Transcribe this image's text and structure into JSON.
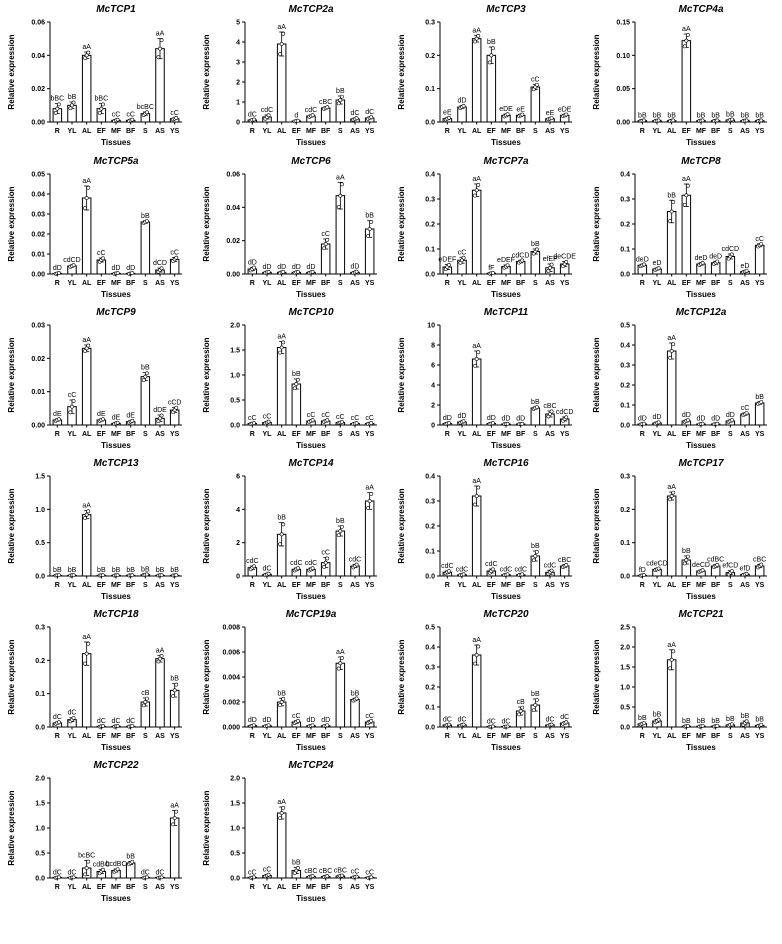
{
  "chart_data": [
    {
      "type": "bar",
      "title": "McTCP1",
      "xlabel": "Tissues",
      "ylabel": "Relative expression",
      "categories": [
        "R",
        "YL",
        "AL",
        "EF",
        "MF",
        "BF",
        "S",
        "AS",
        "YS"
      ],
      "ylim": [
        0,
        0.06
      ],
      "yticks": [
        "0.00",
        "0.02",
        "0.04",
        "0.06"
      ],
      "values": [
        0.008,
        0.01,
        0.04,
        0.008,
        0.001,
        0.001,
        0.005,
        0.044,
        0.002
      ],
      "errors": [
        0.003,
        0.002,
        0.002,
        0.003,
        0.0005,
        0.0005,
        0.001,
        0.006,
        0.0005
      ],
      "labels": [
        "bBC",
        "bB",
        "aA",
        "bBC",
        "cC",
        "cC",
        "bcBC",
        "aA",
        "cC"
      ]
    },
    {
      "type": "bar",
      "title": "McTCP2a",
      "xlabel": "Tissues",
      "ylabel": "Relative expression",
      "categories": [
        "R",
        "YL",
        "AL",
        "EF",
        "MF",
        "BF",
        "S",
        "AS",
        "YS"
      ],
      "ylim": [
        0,
        5
      ],
      "yticks": [
        "0",
        "1",
        "2",
        "3",
        "4",
        "5"
      ],
      "values": [
        0.1,
        0.25,
        3.9,
        0.05,
        0.3,
        0.7,
        1.1,
        0.15,
        0.2
      ],
      "errors": [
        0.03,
        0.1,
        0.6,
        0.02,
        0.05,
        0.05,
        0.2,
        0.05,
        0.05
      ],
      "labels": [
        "dC",
        "cdC",
        "aA",
        "d",
        "cdC",
        "cBC",
        "bB",
        "dC",
        "dC"
      ]
    },
    {
      "type": "bar",
      "title": "McTCP3",
      "xlabel": "Tissues",
      "ylabel": "Relative expression",
      "categories": [
        "R",
        "YL",
        "AL",
        "EF",
        "MF",
        "BF",
        "S",
        "AS",
        "YS"
      ],
      "ylim": [
        0,
        0.3
      ],
      "yticks": [
        "0.0",
        "0.1",
        "0.2",
        "0.3"
      ],
      "values": [
        0.01,
        0.045,
        0.25,
        0.2,
        0.02,
        0.02,
        0.105,
        0.01,
        0.02
      ],
      "errors": [
        0.003,
        0.004,
        0.01,
        0.025,
        0.004,
        0.003,
        0.008,
        0.002,
        0.003
      ],
      "labels": [
        "eE",
        "dD",
        "aA",
        "bB",
        "eDE",
        "eE",
        "cC",
        "eE",
        "eDE"
      ]
    },
    {
      "type": "bar",
      "title": "McTCP4a",
      "xlabel": "Tissues",
      "ylabel": "Relative expression",
      "categories": [
        "R",
        "YL",
        "AL",
        "EF",
        "MF",
        "BF",
        "S",
        "AS",
        "YS"
      ],
      "ylim": [
        0,
        0.15
      ],
      "yticks": [
        "0.00",
        "0.05",
        "0.10",
        "0.15"
      ],
      "values": [
        0.002,
        0.002,
        0.002,
        0.122,
        0.002,
        0.002,
        0.003,
        0.002,
        0.002
      ],
      "errors": [
        0.0005,
        0.0005,
        0.0005,
        0.01,
        0.0005,
        0.0005,
        0.001,
        0.0005,
        0.0005
      ],
      "labels": [
        "bB",
        "bB",
        "bB",
        "aA",
        "bB",
        "bB",
        "bB",
        "bB",
        "bB"
      ]
    },
    {
      "type": "bar",
      "title": "McTCP5a",
      "xlabel": "Tissues",
      "ylabel": "Relative expression",
      "categories": [
        "R",
        "YL",
        "AL",
        "EF",
        "MF",
        "BF",
        "S",
        "AS",
        "YS"
      ],
      "ylim": [
        0,
        0.05
      ],
      "yticks": [
        "0.00",
        "0.01",
        "0.02",
        "0.03",
        "0.04",
        "0.05"
      ],
      "values": [
        0.0003,
        0.004,
        0.038,
        0.007,
        0.0003,
        0.0003,
        0.026,
        0.002,
        0.0073
      ],
      "errors": [
        0.0002,
        0.0005,
        0.006,
        0.001,
        0.0002,
        0.0002,
        0.0006,
        0.001,
        0.001
      ],
      "labels": [
        "dD",
        "cdCD",
        "aA",
        "cC",
        "dD",
        "dD",
        "bB",
        "dCD",
        "cC"
      ]
    },
    {
      "type": "bar",
      "title": "McTCP6",
      "xlabel": "Tissues",
      "ylabel": "Relative expression",
      "categories": [
        "R",
        "YL",
        "AL",
        "EF",
        "MF",
        "BF",
        "S",
        "AS",
        "YS"
      ],
      "ylim": [
        0,
        0.06
      ],
      "yticks": [
        "0.00",
        "0.02",
        "0.04",
        "0.06"
      ],
      "values": [
        0.003,
        0.001,
        0.001,
        0.001,
        0.001,
        0.018,
        0.047,
        0.001,
        0.027
      ],
      "errors": [
        0.001,
        0.0003,
        0.0003,
        0.0003,
        0.0003,
        0.003,
        0.008,
        0.0005,
        0.005
      ],
      "labels": [
        "dD",
        "dD",
        "dD",
        "dD",
        "dD",
        "cC",
        "aA",
        "dD",
        "bB"
      ]
    },
    {
      "type": "bar",
      "title": "McTCP7a",
      "xlabel": "Tissues",
      "ylabel": "Relative expression",
      "categories": [
        "R",
        "YL",
        "AL",
        "EF",
        "MF",
        "BF",
        "S",
        "AS",
        "YS"
      ],
      "ylim": [
        0,
        0.4
      ],
      "yticks": [
        "0.0",
        "0.1",
        "0.2",
        "0.3",
        "0.4"
      ],
      "values": [
        0.028,
        0.055,
        0.335,
        0.003,
        0.03,
        0.05,
        0.09,
        0.025,
        0.04
      ],
      "errors": [
        0.01,
        0.012,
        0.025,
        0.002,
        0.006,
        0.005,
        0.01,
        0.015,
        0.01
      ],
      "labels": [
        "eDEF",
        "cC",
        "aA",
        "fF",
        "eDEF",
        "cdCD",
        "bB",
        "efEF",
        "deCDE"
      ]
    },
    {
      "type": "bar",
      "title": "McTCP8",
      "xlabel": "Tissues",
      "ylabel": "Relative expression",
      "categories": [
        "R",
        "YL",
        "AL",
        "EF",
        "MF",
        "BF",
        "S",
        "AS",
        "YS"
      ],
      "ylim": [
        0,
        0.4
      ],
      "yticks": [
        "0.0",
        "0.1",
        "0.2",
        "0.3",
        "0.4"
      ],
      "values": [
        0.035,
        0.02,
        0.25,
        0.315,
        0.04,
        0.045,
        0.07,
        0.01,
        0.115
      ],
      "errors": [
        0.004,
        0.004,
        0.045,
        0.045,
        0.005,
        0.006,
        0.01,
        0.003,
        0.006
      ],
      "labels": [
        "deD",
        "eD",
        "bB",
        "aA",
        "deD",
        "deD",
        "cdCD",
        "eD",
        "cC"
      ]
    },
    {
      "type": "bar",
      "title": "McTCP9",
      "xlabel": "Tissues",
      "ylabel": "Relative expression",
      "categories": [
        "R",
        "YL",
        "AL",
        "EF",
        "MF",
        "BF",
        "S",
        "AS",
        "YS"
      ],
      "ylim": [
        0,
        0.03
      ],
      "yticks": [
        "0.00",
        "0.01",
        "0.02",
        "0.03"
      ],
      "values": [
        0.0015,
        0.0055,
        0.023,
        0.0015,
        0.0005,
        0.001,
        0.0145,
        0.002,
        0.0045
      ],
      "errors": [
        0.0003,
        0.002,
        0.001,
        0.0003,
        0.0002,
        0.0003,
        0.0012,
        0.001,
        0.0008
      ],
      "labels": [
        "dE",
        "cC",
        "aA",
        "dE",
        "dE",
        "dE",
        "bB",
        "dDE",
        "cCD"
      ]
    },
    {
      "type": "bar",
      "title": "McTCP10",
      "xlabel": "Tissues",
      "ylabel": "Relative expression",
      "categories": [
        "R",
        "YL",
        "AL",
        "EF",
        "MF",
        "BF",
        "S",
        "AS",
        "YS"
      ],
      "ylim": [
        0,
        2.0
      ],
      "yticks": [
        "0.0",
        "0.5",
        "1.0",
        "1.5",
        "2.0"
      ],
      "values": [
        0.03,
        0.05,
        1.55,
        0.82,
        0.08,
        0.08,
        0.05,
        0.03,
        0.03
      ],
      "errors": [
        0.01,
        0.02,
        0.12,
        0.1,
        0.02,
        0.02,
        0.01,
        0.01,
        0.01
      ],
      "labels": [
        "cC",
        "cC",
        "aA",
        "bB",
        "cC",
        "cC",
        "cC",
        "cC",
        "cC"
      ]
    },
    {
      "type": "bar",
      "title": "McTCP11",
      "xlabel": "Tissues",
      "ylabel": "Relative expression",
      "categories": [
        "R",
        "YL",
        "AL",
        "EF",
        "MF",
        "BF",
        "S",
        "AS",
        "YS"
      ],
      "ylim": [
        0,
        10
      ],
      "yticks": [
        "0",
        "2",
        "4",
        "6",
        "8",
        "10"
      ],
      "values": [
        0.15,
        0.3,
        6.6,
        0.15,
        0.1,
        0.1,
        1.7,
        1.1,
        0.6
      ],
      "errors": [
        0.05,
        0.1,
        0.8,
        0.05,
        0.03,
        0.03,
        0.1,
        0.3,
        0.2
      ],
      "labels": [
        "dD",
        "dD",
        "aA",
        "dD",
        "dD",
        "dD",
        "bB",
        "cBC",
        "cdCD"
      ]
    },
    {
      "type": "bar",
      "title": "McTCP12a",
      "xlabel": "Tissues",
      "ylabel": "Relative expression",
      "categories": [
        "R",
        "YL",
        "AL",
        "EF",
        "MF",
        "BF",
        "S",
        "AS",
        "YS"
      ],
      "ylim": [
        0,
        0.5
      ],
      "yticks": [
        "0.0",
        "0.1",
        "0.2",
        "0.3",
        "0.4",
        "0.5"
      ],
      "values": [
        0.005,
        0.01,
        0.37,
        0.02,
        0.005,
        0.005,
        0.02,
        0.055,
        0.11
      ],
      "errors": [
        0.002,
        0.004,
        0.04,
        0.005,
        0.002,
        0.002,
        0.005,
        0.006,
        0.006
      ],
      "labels": [
        "dD",
        "dD",
        "aA",
        "dD",
        "dD",
        "dD",
        "dD",
        "cC",
        "bB"
      ]
    },
    {
      "type": "bar",
      "title": "McTCP13",
      "xlabel": "Tissues",
      "ylabel": "Relative expression",
      "categories": [
        "R",
        "YL",
        "AL",
        "EF",
        "MF",
        "BF",
        "S",
        "AS",
        "YS"
      ],
      "ylim": [
        0,
        1.5
      ],
      "yticks": [
        "0.0",
        "0.5",
        "1.0",
        "1.5"
      ],
      "values": [
        0.01,
        0.01,
        0.92,
        0.01,
        0.01,
        0.01,
        0.02,
        0.01,
        0.01
      ],
      "errors": [
        0.003,
        0.003,
        0.06,
        0.003,
        0.003,
        0.003,
        0.005,
        0.003,
        0.003
      ],
      "labels": [
        "bB",
        "bB",
        "aA",
        "bB",
        "bB",
        "bB",
        "bB",
        "bB",
        "bB"
      ]
    },
    {
      "type": "bar",
      "title": "McTCP14",
      "xlabel": "Tissues",
      "ylabel": "Relative expression",
      "categories": [
        "R",
        "YL",
        "AL",
        "EF",
        "MF",
        "BF",
        "S",
        "AS",
        "YS"
      ],
      "ylim": [
        0,
        6
      ],
      "yticks": [
        "0",
        "2",
        "4",
        "6"
      ],
      "values": [
        0.5,
        0.1,
        2.5,
        0.4,
        0.4,
        0.8,
        2.7,
        0.6,
        4.5
      ],
      "errors": [
        0.1,
        0.05,
        0.7,
        0.08,
        0.08,
        0.3,
        0.3,
        0.1,
        0.5
      ],
      "labels": [
        "cdC",
        "dC",
        "bB",
        "cdC",
        "cdC",
        "cC",
        "bB",
        "cdC",
        "aA"
      ]
    },
    {
      "type": "bar",
      "title": "McTCP16",
      "xlabel": "Tissues",
      "ylabel": "Relative expression",
      "categories": [
        "R",
        "YL",
        "AL",
        "EF",
        "MF",
        "BF",
        "S",
        "AS",
        "YS"
      ],
      "ylim": [
        0,
        0.4
      ],
      "yticks": [
        "0.0",
        "0.1",
        "0.2",
        "0.3",
        "0.4"
      ],
      "values": [
        0.015,
        0.005,
        0.32,
        0.02,
        0.005,
        0.005,
        0.08,
        0.015,
        0.04
      ],
      "errors": [
        0.005,
        0.002,
        0.04,
        0.008,
        0.002,
        0.002,
        0.02,
        0.008,
        0.005
      ],
      "labels": [
        "cdC",
        "cdC",
        "aA",
        "cdC",
        "cdC",
        "cdC",
        "bB",
        "cdC",
        "cBC"
      ]
    },
    {
      "type": "bar",
      "title": "McTCP17",
      "xlabel": "Tissues",
      "ylabel": "Relative expression",
      "categories": [
        "R",
        "YL",
        "AL",
        "EF",
        "MF",
        "BF",
        "S",
        "AS",
        "YS"
      ],
      "ylim": [
        0,
        0.3
      ],
      "yticks": [
        "0.0",
        "0.1",
        "0.2",
        "0.3"
      ],
      "values": [
        0.002,
        0.02,
        0.24,
        0.048,
        0.015,
        0.03,
        0.01,
        0.005,
        0.03
      ],
      "errors": [
        0.001,
        0.003,
        0.012,
        0.012,
        0.003,
        0.004,
        0.006,
        0.002,
        0.005
      ],
      "labels": [
        "fD",
        "cdeCD",
        "aA",
        "bB",
        "deCD",
        "cdBC",
        "efCD",
        "efD",
        "cBC"
      ]
    },
    {
      "type": "bar",
      "title": "McTCP18",
      "xlabel": "Tissues",
      "ylabel": "Relative expression",
      "categories": [
        "R",
        "YL",
        "AL",
        "EF",
        "MF",
        "BF",
        "S",
        "AS",
        "YS"
      ],
      "ylim": [
        0,
        0.3
      ],
      "yticks": [
        "0.0",
        "0.1",
        "0.2",
        "0.3"
      ],
      "values": [
        0.012,
        0.022,
        0.22,
        0.002,
        0.002,
        0.002,
        0.075,
        0.205,
        0.11
      ],
      "errors": [
        0.003,
        0.006,
        0.035,
        0.001,
        0.001,
        0.001,
        0.012,
        0.01,
        0.02
      ],
      "labels": [
        "dC",
        "dC",
        "aA",
        "dC",
        "dC",
        "dC",
        "cB",
        "aA",
        "bB"
      ]
    },
    {
      "type": "bar",
      "title": "McTCP19a",
      "xlabel": "Tissues",
      "ylabel": "Relative expression",
      "categories": [
        "R",
        "YL",
        "AL",
        "EF",
        "MF",
        "BF",
        "S",
        "AS",
        "YS"
      ],
      "ylim": [
        0,
        0.008
      ],
      "yticks": [
        "0.000",
        "0.002",
        "0.004",
        "0.006",
        "0.008"
      ],
      "values": [
        0.0001,
        0.0001,
        0.002,
        0.0004,
        0.0001,
        0.0001,
        0.0051,
        0.0022,
        0.0004
      ],
      "errors": [
        5e-05,
        5e-05,
        0.0003,
        0.0001,
        5e-05,
        5e-05,
        0.0005,
        0.0001,
        0.0001
      ],
      "labels": [
        "dD",
        "dD",
        "bB",
        "cC",
        "dD",
        "dD",
        "aA",
        "bB",
        "cC"
      ]
    },
    {
      "type": "bar",
      "title": "McTCP20",
      "xlabel": "Tissues",
      "ylabel": "Relative expression",
      "categories": [
        "R",
        "YL",
        "AL",
        "EF",
        "MF",
        "BF",
        "S",
        "AS",
        "YS"
      ],
      "ylim": [
        0,
        0.5
      ],
      "yticks": [
        "0.0",
        "0.1",
        "0.2",
        "0.3",
        "0.4",
        "0.5"
      ],
      "values": [
        0.01,
        0.01,
        0.36,
        0.002,
        0.002,
        0.08,
        0.11,
        0.01,
        0.02
      ],
      "errors": [
        0.003,
        0.003,
        0.05,
        0.001,
        0.001,
        0.02,
        0.03,
        0.003,
        0.005
      ],
      "labels": [
        "dC",
        "dC",
        "aA",
        "dC",
        "dC",
        "cB",
        "bB",
        "dC",
        "dC"
      ]
    },
    {
      "type": "bar",
      "title": "McTCP21",
      "xlabel": "Tissues",
      "ylabel": "Relative expression",
      "categories": [
        "R",
        "YL",
        "AL",
        "EF",
        "MF",
        "BF",
        "S",
        "AS",
        "YS"
      ],
      "ylim": [
        0,
        2.5
      ],
      "yticks": [
        "0.0",
        "0.5",
        "1.0",
        "1.5",
        "2.0",
        "2.5"
      ],
      "values": [
        0.08,
        0.15,
        1.68,
        0.02,
        0.02,
        0.02,
        0.05,
        0.1,
        0.04
      ],
      "errors": [
        0.02,
        0.04,
        0.25,
        0.01,
        0.01,
        0.01,
        0.02,
        0.05,
        0.02
      ],
      "labels": [
        "bB",
        "bB",
        "aA",
        "bB",
        "bB",
        "bB",
        "bB",
        "bB",
        "bB"
      ]
    },
    {
      "type": "bar",
      "title": "McTCP22",
      "xlabel": "Tissues",
      "ylabel": "Relative expression",
      "categories": [
        "R",
        "YL",
        "AL",
        "EF",
        "MF",
        "BF",
        "S",
        "AS",
        "YS"
      ],
      "ylim": [
        0,
        2.0
      ],
      "yticks": [
        "0.0",
        "0.5",
        "1.0",
        "1.5",
        "2.0"
      ],
      "values": [
        0.01,
        0.01,
        0.2,
        0.13,
        0.15,
        0.3,
        0.01,
        0.01,
        1.2
      ],
      "errors": [
        0.005,
        0.005,
        0.15,
        0.04,
        0.03,
        0.03,
        0.005,
        0.005,
        0.15
      ],
      "labels": [
        "dC",
        "dC",
        "bcBC",
        "cdBC",
        "bcdBC",
        "bB",
        "dC",
        "dC",
        "aA"
      ]
    },
    {
      "type": "bar",
      "title": "McTCP24",
      "xlabel": "Tissues",
      "ylabel": "Relative expression",
      "categories": [
        "R",
        "YL",
        "AL",
        "EF",
        "MF",
        "BF",
        "S",
        "AS",
        "YS"
      ],
      "ylim": [
        0,
        2.0
      ],
      "yticks": [
        "0.0",
        "0.5",
        "1.0",
        "1.5",
        "2.0"
      ],
      "values": [
        0.01,
        0.05,
        1.3,
        0.15,
        0.03,
        0.03,
        0.04,
        0.02,
        0.01
      ],
      "errors": [
        0.005,
        0.02,
        0.12,
        0.06,
        0.01,
        0.01,
        0.01,
        0.01,
        0.005
      ],
      "labels": [
        "cC",
        "cC",
        "aA",
        "bB",
        "cBC",
        "cBC",
        "cBC",
        "cC",
        "cC"
      ]
    }
  ]
}
